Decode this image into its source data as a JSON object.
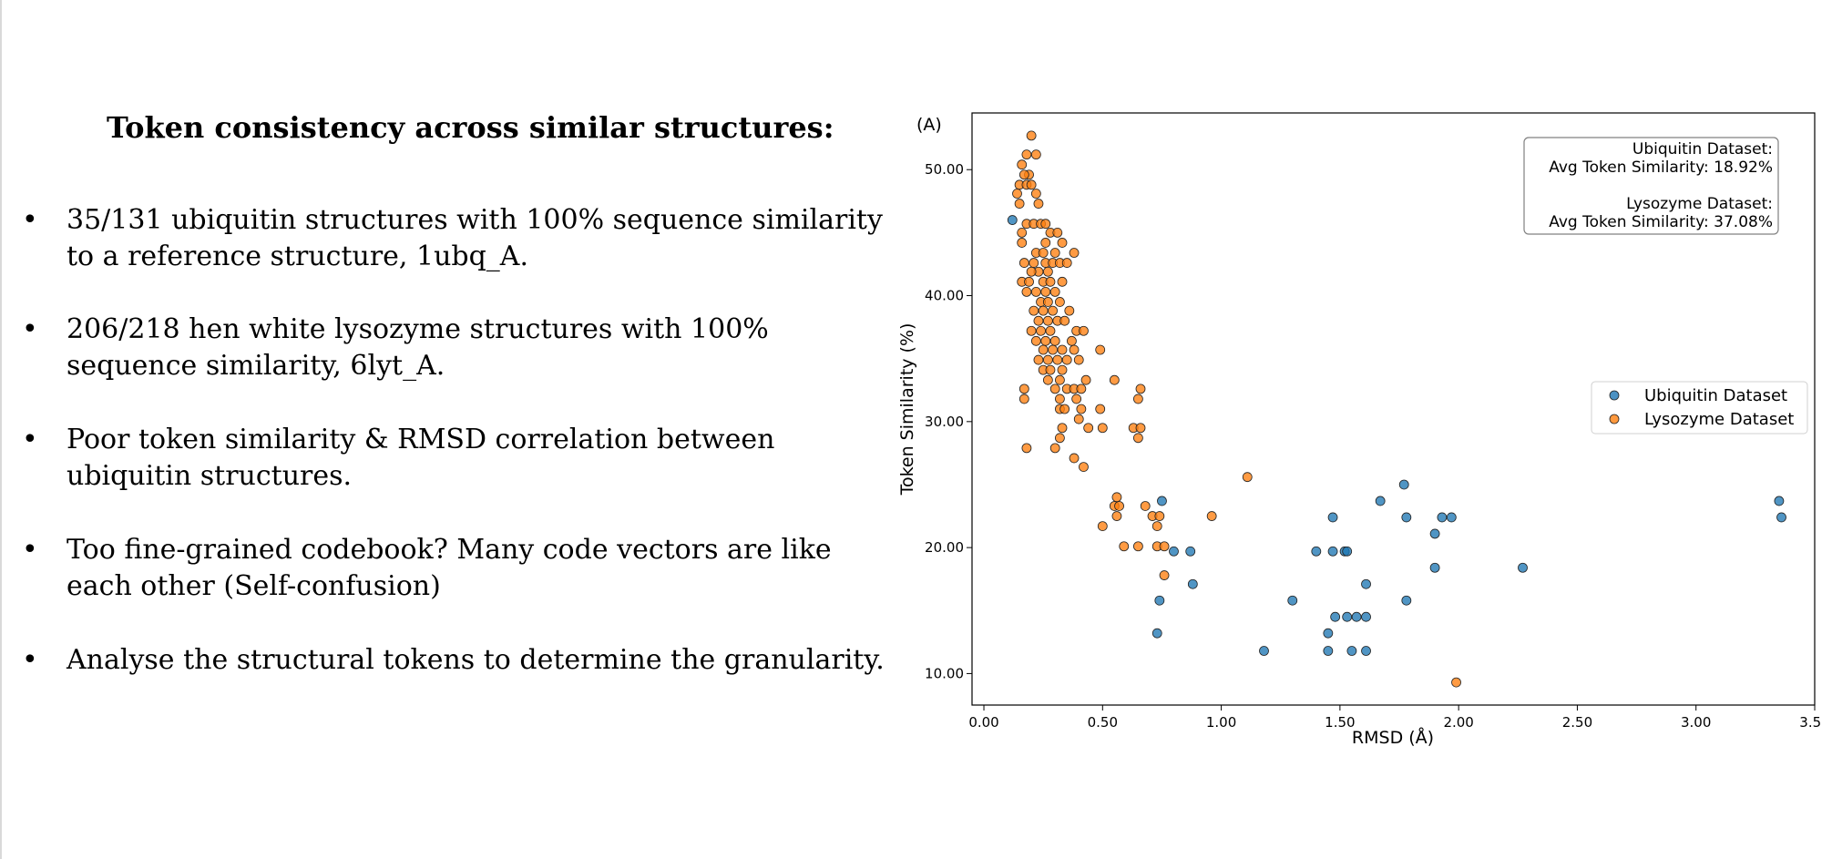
{
  "slide": {
    "title": "Token consistency across similar structures:",
    "bullet_symbol": "•",
    "bullets": [
      "35/131 ubiquitin structures with 100% sequence similarity to a reference structure, 1ubq_A.",
      "206/218 hen white lysozyme structures with 100% sequence similarity, 6lyt_A.",
      "Poor token similarity & RMSD correlation between ubiquitin structures.",
      "Too fine-grained codebook? Many code vectors are like each other (Self-confusion)",
      "Analyse the structural tokens to determine the granularity."
    ]
  },
  "chart_data": {
    "type": "scatter",
    "panel_label": "(A)",
    "xlabel": "RMSD (Å)",
    "ylabel": "Token Similarity (%)",
    "xlim": [
      -0.05,
      3.5
    ],
    "ylim": [
      7.5,
      54.5
    ],
    "xticks": [
      0,
      0.5,
      1.0,
      1.5,
      2.0,
      2.5,
      3.0,
      3.5
    ],
    "xtick_labels": [
      "0.00",
      "0.50",
      "1.00",
      "1.50",
      "2.00",
      "2.50",
      "3.00",
      "3.50"
    ],
    "yticks": [
      10,
      20,
      30,
      40,
      50
    ],
    "ytick_labels": [
      "10.00",
      "20.00",
      "30.00",
      "40.00",
      "50.00"
    ],
    "grid": false,
    "legend_position": "center-right",
    "annotation": [
      "Ubiquitin Dataset:",
      "Avg Token Similarity: 18.92%",
      "",
      "Lysozyme Dataset:",
      "Avg Token Similarity: 37.08%"
    ],
    "series": [
      {
        "name": "Ubiquitin Dataset",
        "color": "#1f77b4",
        "points": [
          [
            0.12,
            46.0
          ],
          [
            0.73,
            13.2
          ],
          [
            0.74,
            15.8
          ],
          [
            0.75,
            23.7
          ],
          [
            0.8,
            19.7
          ],
          [
            0.87,
            19.7
          ],
          [
            0.88,
            17.1
          ],
          [
            1.18,
            11.8
          ],
          [
            1.3,
            15.8
          ],
          [
            1.4,
            19.7
          ],
          [
            1.45,
            11.8
          ],
          [
            1.45,
            13.2
          ],
          [
            1.47,
            19.7
          ],
          [
            1.47,
            22.4
          ],
          [
            1.48,
            14.5
          ],
          [
            1.52,
            19.7
          ],
          [
            1.53,
            19.7
          ],
          [
            1.53,
            14.5
          ],
          [
            1.55,
            11.8
          ],
          [
            1.57,
            14.5
          ],
          [
            1.61,
            14.5
          ],
          [
            1.61,
            11.8
          ],
          [
            1.61,
            17.1
          ],
          [
            1.67,
            23.7
          ],
          [
            1.77,
            25.0
          ],
          [
            1.78,
            22.4
          ],
          [
            1.78,
            15.8
          ],
          [
            1.9,
            21.1
          ],
          [
            1.9,
            18.4
          ],
          [
            1.93,
            22.4
          ],
          [
            1.97,
            22.4
          ],
          [
            2.27,
            18.4
          ],
          [
            3.35,
            23.7
          ],
          [
            3.36,
            22.4
          ]
        ]
      },
      {
        "name": "Lysozyme Dataset",
        "color": "#ff7f0e",
        "points": [
          [
            0.2,
            52.7
          ],
          [
            0.22,
            51.2
          ],
          [
            0.18,
            51.2
          ],
          [
            0.16,
            50.4
          ],
          [
            0.19,
            49.6
          ],
          [
            0.17,
            49.6
          ],
          [
            0.15,
            48.8
          ],
          [
            0.18,
            48.8
          ],
          [
            0.2,
            48.8
          ],
          [
            0.14,
            48.1
          ],
          [
            0.22,
            48.1
          ],
          [
            0.23,
            47.3
          ],
          [
            0.15,
            47.3
          ],
          [
            0.18,
            45.7
          ],
          [
            0.21,
            45.7
          ],
          [
            0.24,
            45.7
          ],
          [
            0.26,
            45.7
          ],
          [
            0.16,
            45.0
          ],
          [
            0.28,
            45.0
          ],
          [
            0.31,
            45.0
          ],
          [
            0.16,
            44.2
          ],
          [
            0.26,
            44.2
          ],
          [
            0.33,
            44.2
          ],
          [
            0.22,
            43.4
          ],
          [
            0.25,
            43.4
          ],
          [
            0.3,
            43.4
          ],
          [
            0.38,
            43.4
          ],
          [
            0.17,
            42.6
          ],
          [
            0.21,
            42.6
          ],
          [
            0.26,
            42.6
          ],
          [
            0.29,
            42.6
          ],
          [
            0.32,
            42.6
          ],
          [
            0.35,
            42.6
          ],
          [
            0.23,
            41.9
          ],
          [
            0.27,
            41.9
          ],
          [
            0.2,
            41.9
          ],
          [
            0.16,
            41.1
          ],
          [
            0.19,
            41.1
          ],
          [
            0.25,
            41.1
          ],
          [
            0.28,
            41.1
          ],
          [
            0.33,
            41.1
          ],
          [
            0.18,
            40.3
          ],
          [
            0.22,
            40.3
          ],
          [
            0.26,
            40.3
          ],
          [
            0.3,
            40.3
          ],
          [
            0.24,
            39.5
          ],
          [
            0.27,
            39.5
          ],
          [
            0.32,
            39.5
          ],
          [
            0.21,
            38.8
          ],
          [
            0.25,
            38.8
          ],
          [
            0.29,
            38.8
          ],
          [
            0.36,
            38.8
          ],
          [
            0.23,
            38.0
          ],
          [
            0.27,
            38.0
          ],
          [
            0.31,
            38.0
          ],
          [
            0.34,
            38.0
          ],
          [
            0.2,
            37.2
          ],
          [
            0.24,
            37.2
          ],
          [
            0.28,
            37.2
          ],
          [
            0.39,
            37.2
          ],
          [
            0.42,
            37.2
          ],
          [
            0.22,
            36.4
          ],
          [
            0.26,
            36.4
          ],
          [
            0.3,
            36.4
          ],
          [
            0.37,
            36.4
          ],
          [
            0.25,
            35.7
          ],
          [
            0.29,
            35.7
          ],
          [
            0.33,
            35.7
          ],
          [
            0.38,
            35.7
          ],
          [
            0.49,
            35.7
          ],
          [
            0.23,
            34.9
          ],
          [
            0.27,
            34.9
          ],
          [
            0.31,
            34.9
          ],
          [
            0.35,
            34.9
          ],
          [
            0.4,
            34.9
          ],
          [
            0.25,
            34.1
          ],
          [
            0.28,
            34.1
          ],
          [
            0.33,
            34.1
          ],
          [
            0.27,
            33.3
          ],
          [
            0.32,
            33.3
          ],
          [
            0.43,
            33.3
          ],
          [
            0.55,
            33.3
          ],
          [
            0.17,
            32.6
          ],
          [
            0.3,
            32.6
          ],
          [
            0.35,
            32.6
          ],
          [
            0.38,
            32.6
          ],
          [
            0.41,
            32.6
          ],
          [
            0.66,
            32.6
          ],
          [
            0.17,
            31.8
          ],
          [
            0.32,
            31.8
          ],
          [
            0.39,
            31.8
          ],
          [
            0.65,
            31.8
          ],
          [
            0.32,
            31.0
          ],
          [
            0.34,
            31.0
          ],
          [
            0.41,
            31.0
          ],
          [
            0.49,
            31.0
          ],
          [
            0.4,
            30.2
          ],
          [
            0.33,
            29.5
          ],
          [
            0.44,
            29.5
          ],
          [
            0.5,
            29.5
          ],
          [
            0.63,
            29.5
          ],
          [
            0.66,
            29.5
          ],
          [
            0.32,
            28.7
          ],
          [
            0.65,
            28.7
          ],
          [
            0.18,
            27.9
          ],
          [
            0.3,
            27.9
          ],
          [
            0.38,
            27.1
          ],
          [
            0.42,
            26.4
          ],
          [
            1.11,
            25.6
          ],
          [
            0.56,
            24.0
          ],
          [
            0.55,
            23.3
          ],
          [
            0.57,
            23.3
          ],
          [
            0.68,
            23.3
          ],
          [
            0.56,
            22.5
          ],
          [
            0.71,
            22.5
          ],
          [
            0.74,
            22.5
          ],
          [
            0.96,
            22.5
          ],
          [
            0.5,
            21.7
          ],
          [
            0.73,
            21.7
          ],
          [
            0.59,
            20.1
          ],
          [
            0.65,
            20.1
          ],
          [
            0.73,
            20.1
          ],
          [
            0.76,
            20.1
          ],
          [
            0.76,
            17.8
          ],
          [
            1.99,
            9.3
          ]
        ]
      }
    ]
  }
}
